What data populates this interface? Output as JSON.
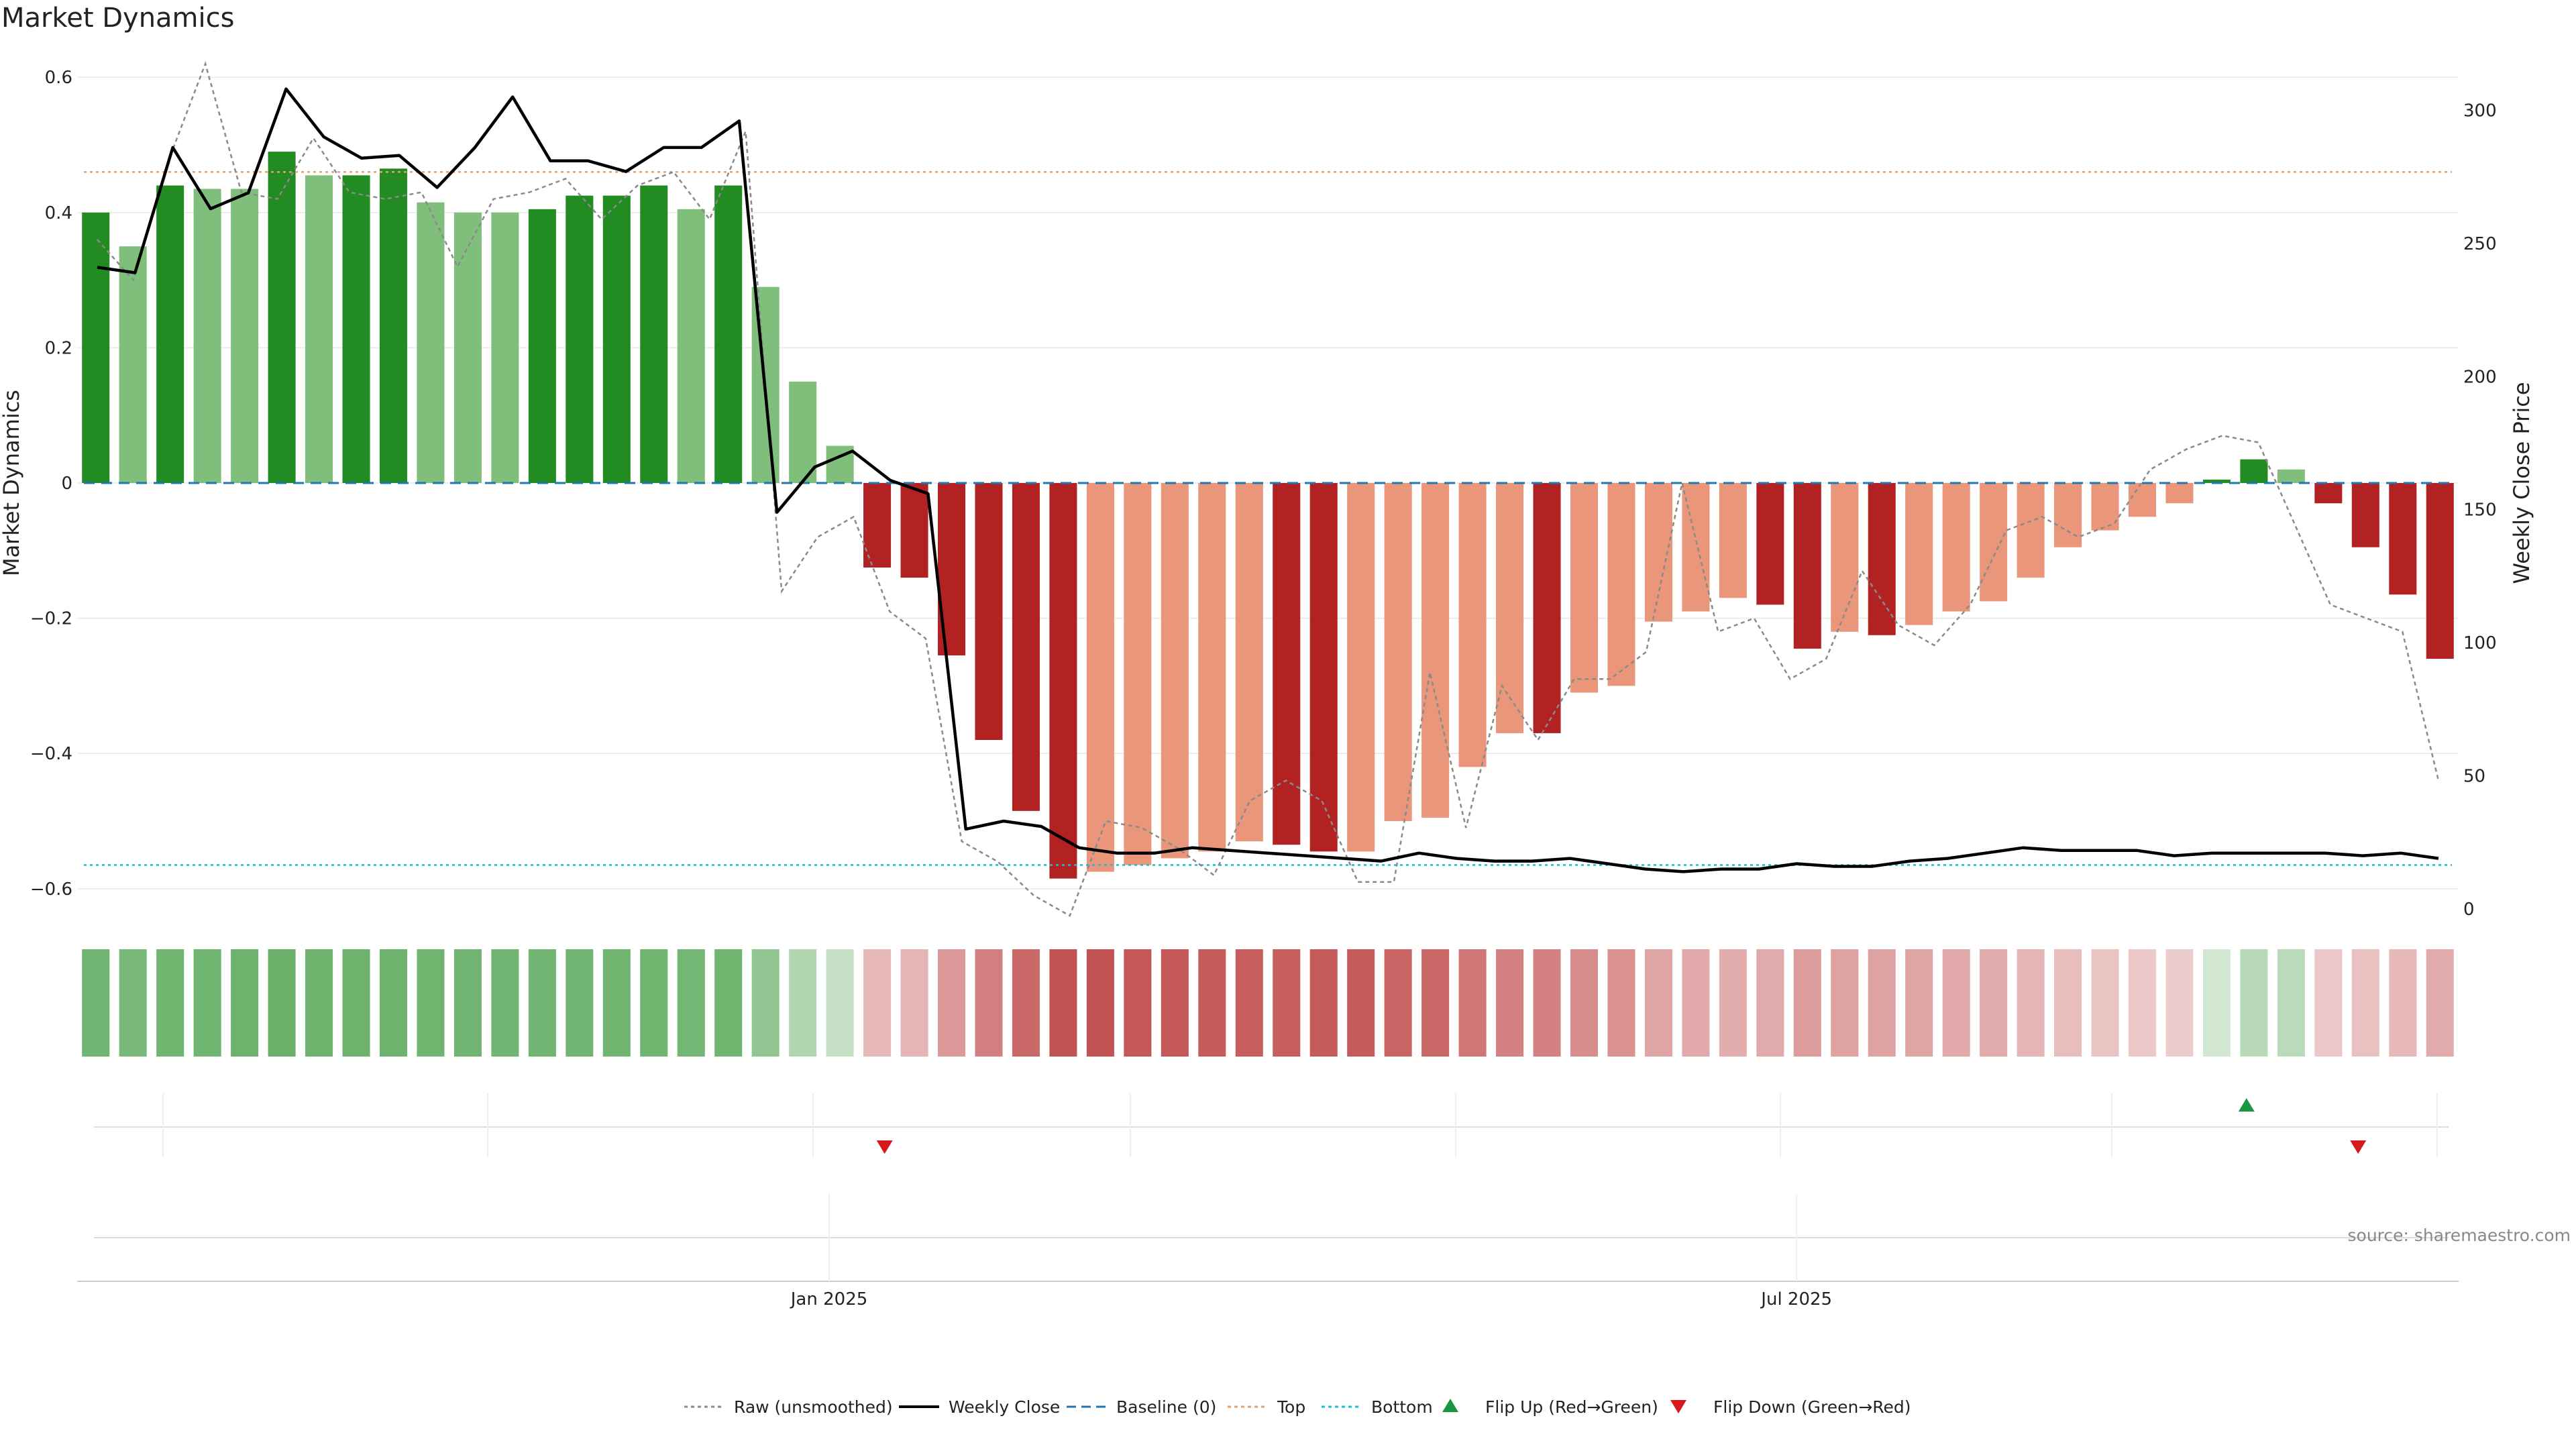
{
  "chart_data": {
    "type": "bar",
    "title": "Market Dynamics",
    "ylabel_left": "Market Dynamics",
    "ylabel_right": "Weekly Close Price",
    "ylim_left": [
      -0.63,
      0.63
    ],
    "ylim_right": [
      0,
      320
    ],
    "left_ticks": [
      0.6,
      0.4,
      0.2,
      0,
      -0.2,
      -0.4,
      -0.6
    ],
    "left_tick_labels": [
      "0.6",
      "0.4",
      "0.2",
      "0",
      "−0.2",
      "−0.4",
      "−0.6"
    ],
    "right_ticks": [
      300,
      250,
      200,
      150,
      100,
      50,
      0
    ],
    "right_tick_labels": [
      "300",
      "250",
      "200",
      "150",
      "100",
      "50",
      "0"
    ],
    "x_date_labels": [
      {
        "index": 19.71,
        "label": "Jan 2025"
      },
      {
        "index": 45.71,
        "label": "Jul 2025"
      }
    ],
    "bars": [
      0.4,
      0.35,
      0.44,
      0.435,
      0.435,
      0.49,
      0.455,
      0.455,
      0.465,
      0.415,
      0.4,
      0.4,
      0.405,
      0.425,
      0.425,
      0.44,
      0.405,
      0.44,
      0.29,
      0.15,
      0.055,
      -0.125,
      -0.14,
      -0.255,
      -0.38,
      -0.485,
      -0.585,
      -0.575,
      -0.565,
      -0.555,
      -0.545,
      -0.53,
      -0.535,
      -0.545,
      -0.545,
      -0.5,
      -0.495,
      -0.42,
      -0.37,
      -0.37,
      -0.31,
      -0.3,
      -0.205,
      -0.19,
      -0.17,
      -0.18,
      -0.245,
      -0.22,
      -0.225,
      -0.21,
      -0.19,
      -0.175,
      -0.14,
      -0.095,
      -0.07,
      -0.05,
      -0.03,
      0.005,
      0.035,
      0.02,
      -0.03,
      -0.095,
      -0.165,
      -0.26
    ],
    "bar_colors": [
      "#228b22",
      "#7fbf7b",
      "#228b22",
      "#7fbf7b",
      "#7fbf7b",
      "#228b22",
      "#7fbf7b",
      "#228b22",
      "#228b22",
      "#7fbf7b",
      "#7fbf7b",
      "#7fbf7b",
      "#228b22",
      "#228b22",
      "#228b22",
      "#228b22",
      "#7fbf7b",
      "#228b22",
      "#7fbf7b",
      "#7fbf7b",
      "#7fbf7b",
      "#b22222",
      "#b22222",
      "#b22222",
      "#b22222",
      "#b22222",
      "#b22222",
      "#e9967a",
      "#e9967a",
      "#e9967a",
      "#e9967a",
      "#e9967a",
      "#b22222",
      "#b22222",
      "#e9967a",
      "#e9967a",
      "#e9967a",
      "#e9967a",
      "#e9967a",
      "#b22222",
      "#e9967a",
      "#e9967a",
      "#e9967a",
      "#e9967a",
      "#e9967a",
      "#b22222",
      "#b22222",
      "#e9967a",
      "#b22222",
      "#e9967a",
      "#e9967a",
      "#e9967a",
      "#e9967a",
      "#e9967a",
      "#e9967a",
      "#e9967a",
      "#e9967a",
      "#228b22",
      "#228b22",
      "#7fbf7b",
      "#b22222",
      "#b22222",
      "#b22222",
      "#b22222"
    ],
    "raw_unsmoothed": [
      0.36,
      0.3,
      0.48,
      0.62,
      0.43,
      0.42,
      0.51,
      0.43,
      0.42,
      0.43,
      0.32,
      0.42,
      0.43,
      0.45,
      0.39,
      0.44,
      0.46,
      0.39,
      0.52,
      -0.16,
      -0.08,
      -0.05,
      -0.19,
      -0.23,
      -0.53,
      -0.56,
      -0.61,
      -0.64,
      -0.5,
      -0.51,
      -0.54,
      -0.58,
      -0.47,
      -0.44,
      -0.47,
      -0.59,
      -0.59,
      -0.28,
      -0.51,
      -0.3,
      -0.38,
      -0.29,
      -0.29,
      -0.25,
      0.0,
      -0.22,
      -0.2,
      -0.29,
      -0.26,
      -0.13,
      -0.21,
      -0.24,
      -0.18,
      -0.07,
      -0.05,
      -0.08,
      -0.06,
      0.02,
      0.05,
      0.07,
      0.06,
      -0.06,
      -0.18,
      -0.2,
      -0.22,
      -0.44
    ],
    "weekly_close": [
      241,
      239,
      286,
      263,
      269,
      308,
      290,
      282,
      283,
      271,
      286,
      305,
      281,
      281,
      277,
      286,
      286,
      296,
      149,
      166,
      172,
      161,
      156,
      30,
      33,
      31,
      23,
      21,
      21,
      23,
      22,
      21,
      20,
      19,
      18,
      21,
      19,
      18,
      18,
      19,
      17,
      15,
      14,
      15,
      15,
      17,
      16,
      16,
      18,
      19,
      21,
      23,
      22,
      22,
      22,
      20,
      21,
      21,
      21,
      21,
      20,
      21,
      19
    ],
    "baseline": 0,
    "top": 0.46,
    "bottom": -0.565,
    "band_strips": [
      0.44,
      0.4,
      0.45,
      0.45,
      0.46,
      0.47,
      0.46,
      0.46,
      0.46,
      0.45,
      0.44,
      0.44,
      0.44,
      0.44,
      0.45,
      0.45,
      0.43,
      0.45,
      0.3,
      0.15,
      0.06,
      -0.12,
      -0.14,
      -0.26,
      -0.38,
      -0.48,
      -0.58,
      -0.58,
      -0.56,
      -0.55,
      -0.54,
      -0.53,
      -0.53,
      -0.54,
      -0.54,
      -0.5,
      -0.49,
      -0.42,
      -0.37,
      -0.37,
      -0.31,
      -0.3,
      -0.21,
      -0.19,
      -0.17,
      -0.18,
      -0.25,
      -0.22,
      -0.22,
      -0.21,
      -0.19,
      -0.18,
      -0.14,
      -0.1,
      -0.07,
      -0.05,
      -0.03,
      0.005,
      0.12,
      0.11,
      -0.05,
      -0.08,
      -0.12,
      -0.18
    ],
    "flip_up": [
      {
        "index": 57.8
      }
    ],
    "flip_down": [
      {
        "index": 21.2
      },
      {
        "index": 60.8
      }
    ],
    "legend": [
      {
        "label": "Raw (unsmoothed)",
        "marker": "dotted-line",
        "color": "#8a8a8a"
      },
      {
        "label": "Weekly Close",
        "marker": "line",
        "color": "#000000"
      },
      {
        "label": "Baseline (0)",
        "marker": "dashed-line",
        "color": "#1f77b4"
      },
      {
        "label": "Top",
        "marker": "dotted-line",
        "color": "#e3a06a"
      },
      {
        "label": "Bottom",
        "marker": "dotted-line",
        "color": "#17becf"
      },
      {
        "label": "Flip Up (Red→Green)",
        "marker": "triangle-up",
        "color": "#1a9641"
      },
      {
        "label": "Flip Down (Green→Red)",
        "marker": "triangle-down",
        "color": "#d7191c"
      }
    ],
    "legend_position": "bottom-center",
    "source": "source: sharemaestro.com",
    "grid": true
  }
}
